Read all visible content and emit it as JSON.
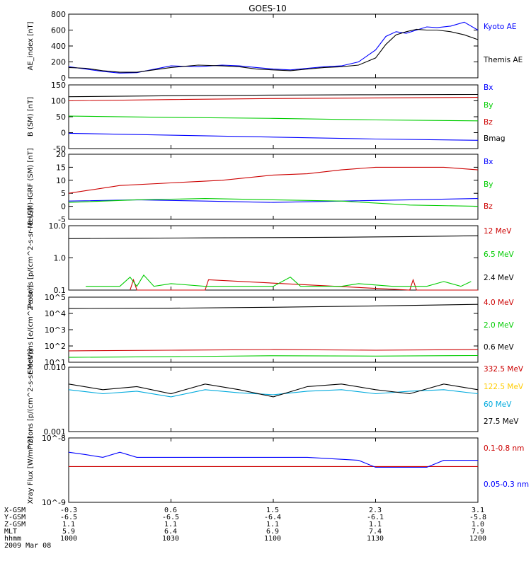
{
  "title": "GOES-10",
  "footer": {
    "row_labels": [
      "X-GSM",
      "Y-GSM",
      "Z-GSM",
      "MLT",
      "hhmm"
    ],
    "date": "2009 Mar 08",
    "columns": [
      {
        "X-GSM": "-0.3",
        "Y-GSM": "-6.5",
        "Z-GSM": "1.1",
        "MLT": "5.9",
        "hhmm": "1000"
      },
      {
        "X-GSM": "0.6",
        "Y-GSM": "-6.5",
        "Z-GSM": "1.1",
        "MLT": "6.4",
        "hhmm": "1030"
      },
      {
        "X-GSM": "1.5",
        "Y-GSM": "-6.4",
        "Z-GSM": "1.1",
        "MLT": "6.9",
        "hhmm": "1100"
      },
      {
        "X-GSM": "2.3",
        "Y-GSM": "-6.1",
        "Z-GSM": "1.1",
        "MLT": "7.4",
        "hhmm": "1130"
      },
      {
        "X-GSM": "3.1",
        "Y-GSM": "-5.8",
        "Z-GSM": "1.0",
        "MLT": "7.9",
        "hhmm": "1200"
      }
    ]
  },
  "chart_data": [
    {
      "type": "line",
      "ylabel": "AE_index [nT]",
      "ylim": [
        0,
        800
      ],
      "yticks": [
        "0",
        "200",
        "400",
        "600",
        "800"
      ],
      "time_range": [
        "10:00",
        "12:00"
      ],
      "series": [
        {
          "name": "Kyoto AE",
          "color": "#0000ff",
          "x": [
            0,
            5,
            10,
            15,
            20,
            30,
            38,
            45,
            50,
            55,
            60,
            65,
            70,
            75,
            80,
            85,
            90,
            93,
            96,
            99,
            102,
            105,
            108,
            112,
            116,
            120
          ],
          "y": [
            140,
            110,
            80,
            60,
            65,
            150,
            140,
            160,
            150,
            130,
            110,
            100,
            120,
            140,
            150,
            200,
            350,
            520,
            580,
            560,
            600,
            640,
            630,
            650,
            700,
            600
          ]
        },
        {
          "name": "Themis AE",
          "color": "#000000",
          "x": [
            0,
            5,
            10,
            15,
            20,
            30,
            38,
            45,
            50,
            55,
            60,
            65,
            70,
            75,
            80,
            85,
            90,
            93,
            96,
            99,
            102,
            105,
            108,
            112,
            116,
            120
          ],
          "y": [
            130,
            120,
            90,
            70,
            70,
            130,
            160,
            150,
            140,
            110,
            100,
            90,
            110,
            130,
            140,
            160,
            250,
            420,
            540,
            580,
            610,
            600,
            600,
            580,
            540,
            480
          ]
        }
      ]
    },
    {
      "type": "line",
      "ylabel": "B (SM) [nT]",
      "ylim": [
        -50,
        150
      ],
      "yticks": [
        "-50",
        "0",
        "50",
        "100",
        "150"
      ],
      "series": [
        {
          "name": "Bx",
          "color": "#0000ff",
          "x": [
            0,
            30,
            60,
            90,
            120
          ],
          "y": [
            -2,
            -8,
            -14,
            -20,
            -24
          ]
        },
        {
          "name": "By",
          "color": "#00cc00",
          "x": [
            0,
            30,
            60,
            90,
            120
          ],
          "y": [
            52,
            48,
            45,
            40,
            37
          ]
        },
        {
          "name": "Bz",
          "color": "#cc0000",
          "x": [
            0,
            30,
            60,
            90,
            120
          ],
          "y": [
            100,
            104,
            107,
            109,
            111
          ]
        },
        {
          "name": "Bmag",
          "color": "#000000",
          "x": [
            0,
            30,
            60,
            90,
            120
          ],
          "y": [
            113,
            116,
            118,
            119,
            120
          ]
        }
      ]
    },
    {
      "type": "line",
      "ylabel": "B (SM)-IGRF (SM) [nT]",
      "ylim": [
        -5,
        20
      ],
      "yticks": [
        "-5",
        "0",
        "5",
        "10",
        "15",
        "20"
      ],
      "series": [
        {
          "name": "Bx",
          "color": "#0000ff",
          "x": [
            0,
            20,
            40,
            60,
            80,
            100,
            120
          ],
          "y": [
            2,
            2.5,
            2,
            1.5,
            2,
            2.5,
            3
          ]
        },
        {
          "name": "By",
          "color": "#00cc00",
          "x": [
            0,
            20,
            40,
            60,
            80,
            100,
            120
          ],
          "y": [
            1.5,
            2.5,
            3,
            2.5,
            2,
            0.5,
            0
          ]
        },
        {
          "name": "Bz",
          "color": "#cc0000",
          "x": [
            0,
            15,
            30,
            45,
            60,
            70,
            80,
            90,
            100,
            110,
            120
          ],
          "y": [
            5,
            8,
            9,
            10,
            12,
            12.5,
            14,
            15,
            15,
            15,
            14
          ]
        }
      ]
    },
    {
      "type": "line",
      "ylabel": "Protons [p/(cm^2-s-sr-MeV)]",
      "yscale": "log",
      "ylim": [
        0.1,
        100
      ],
      "yticks": [
        "0.1",
        "1.0",
        "10.0"
      ],
      "series": [
        {
          "name": "12 MeV",
          "color": "#cc0000",
          "x": [
            18,
            19,
            20,
            40,
            41,
            100,
            101,
            102,
            120
          ],
          "y": [
            0.1,
            0.3,
            0.1,
            0.1,
            0.3,
            0.1,
            0.3,
            0.1,
            0.1
          ]
        },
        {
          "name": "6.5 MeV",
          "color": "#00cc00",
          "x": [
            5,
            15,
            18,
            20,
            22,
            25,
            30,
            40,
            60,
            65,
            68,
            80,
            85,
            95,
            105,
            110,
            115,
            118
          ],
          "y": [
            0.15,
            0.15,
            0.4,
            0.15,
            0.5,
            0.15,
            0.2,
            0.15,
            0.15,
            0.4,
            0.15,
            0.15,
            0.2,
            0.15,
            0.15,
            0.25,
            0.15,
            0.25
          ]
        },
        {
          "name": "2.4 MeV",
          "color": "#000000",
          "x": [
            0,
            20,
            40,
            60,
            80,
            100,
            120
          ],
          "y": [
            25,
            26,
            27,
            28,
            29,
            31,
            34
          ]
        }
      ]
    },
    {
      "type": "line",
      "ylabel": "Electrons [e/(cm^2-s-sr)]",
      "yscale": "log",
      "ylim": [
        10,
        100000
      ],
      "yticks": [
        "10^1",
        "10^2",
        "10^3",
        "10^4",
        "10^5"
      ],
      "series": [
        {
          "name": "4.0 MeV",
          "color": "#cc0000",
          "x": [
            0,
            30,
            60,
            90,
            120
          ],
          "y": [
            50,
            55,
            60,
            55,
            60
          ]
        },
        {
          "name": "2.0 MeV",
          "color": "#00cc00",
          "x": [
            0,
            30,
            60,
            90,
            120
          ],
          "y": [
            20,
            22,
            25,
            24,
            26
          ]
        },
        {
          "name": "0.6 MeV",
          "color": "#000000",
          "x": [
            0,
            30,
            60,
            90,
            120
          ],
          "y": [
            20000,
            21000,
            24000,
            29000,
            36000
          ]
        }
      ]
    },
    {
      "type": "line",
      "ylabel": "Protons [p/(cm^2-s-sr-MeV)]",
      "yscale": "log",
      "ylim": [
        0.001,
        0.1
      ],
      "yticks": [
        "0.001",
        "0.010"
      ],
      "series": [
        {
          "name": "332.5 MeV",
          "color": "#cc0000",
          "x": [],
          "y": []
        },
        {
          "name": "122.5 MeV",
          "color": "#ffcc00",
          "x": [],
          "y": []
        },
        {
          "name": "60 MeV",
          "color": "#00aadd",
          "x": [
            0,
            10,
            20,
            30,
            40,
            50,
            60,
            70,
            80,
            90,
            100,
            110,
            120
          ],
          "y": [
            0.02,
            0.015,
            0.018,
            0.012,
            0.02,
            0.016,
            0.014,
            0.018,
            0.02,
            0.015,
            0.018,
            0.02,
            0.015
          ]
        },
        {
          "name": "27.5 MeV",
          "color": "#000000",
          "x": [
            0,
            10,
            20,
            30,
            40,
            50,
            60,
            70,
            80,
            90,
            100,
            110,
            120
          ],
          "y": [
            0.03,
            0.02,
            0.025,
            0.015,
            0.03,
            0.02,
            0.012,
            0.025,
            0.03,
            0.02,
            0.015,
            0.03,
            0.02
          ]
        }
      ]
    },
    {
      "type": "line",
      "ylabel": "Xray Flux [W/m^2]",
      "yscale": "log",
      "ylim": [
        1e-09,
        1e-08
      ],
      "yticks": [
        "10^-9",
        "10^-8"
      ],
      "series": [
        {
          "name": "0.1-0.8 nm",
          "color": "#cc0000",
          "x": [
            0,
            120
          ],
          "y": [
            3.6e-09,
            3.6e-09
          ]
        },
        {
          "name": "0.05-0.3 nm",
          "color": "#0000ff",
          "x": [
            0,
            5,
            10,
            15,
            20,
            25,
            50,
            70,
            85,
            90,
            100,
            105,
            110,
            120
          ],
          "y": [
            6e-09,
            5.5e-09,
            5e-09,
            6e-09,
            5e-09,
            5e-09,
            5e-09,
            5e-09,
            4.5e-09,
            3.5e-09,
            3.5e-09,
            3.5e-09,
            4.5e-09,
            4.5e-09
          ]
        }
      ]
    }
  ]
}
